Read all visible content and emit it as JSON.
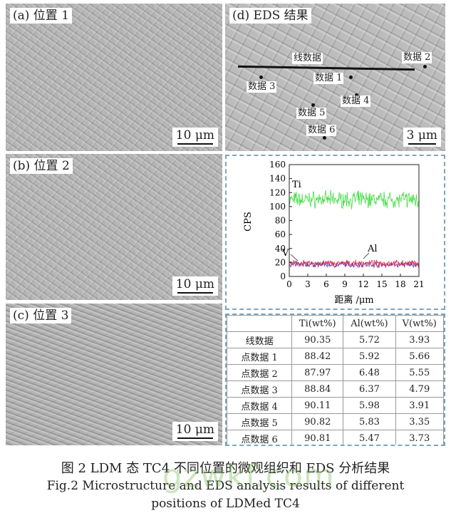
{
  "panel_a": {
    "label": "(a) 位置 1",
    "scale": "10 μm"
  },
  "panel_b": {
    "label": "(b) 位置 2",
    "scale": "10 μm"
  },
  "panel_c": {
    "label": "(c) 位置 3",
    "scale": "10 μm"
  },
  "panel_d": {
    "label": "(d) EDS 结果",
    "scale": "3 μm",
    "line_label": "线数据",
    "points": [
      "数据 1",
      "数据 2",
      "数据 3",
      "数据 4",
      "数据 5",
      "数据 6"
    ]
  },
  "chart_data": {
    "type": "line",
    "xlabel": "距离 /μm",
    "ylabel": "CPS",
    "xlim": [
      0,
      21
    ],
    "ylim": [
      0,
      160
    ],
    "xticks": [
      "0",
      "3",
      "6",
      "9",
      "12",
      "15",
      "18",
      "21"
    ],
    "yticks": [
      "0",
      "20",
      "40",
      "60",
      "80",
      "100",
      "120",
      "140",
      "160"
    ],
    "series": [
      {
        "name": "Ti",
        "color": "#44dd44",
        "mean": 110,
        "noise": 14
      },
      {
        "name": "Al",
        "color": "#dd3355",
        "mean": 19,
        "noise": 5
      },
      {
        "name": "V",
        "color": "#6a2a9a",
        "mean": 17,
        "noise": 5
      }
    ],
    "grid": false,
    "legend": "inline-labels"
  },
  "table": {
    "headers": [
      "",
      "Ti(wt%)",
      "Al(wt%)",
      "V(wt%)"
    ],
    "rows": [
      [
        "线数据",
        "90.35",
        "5.72",
        "3.93"
      ],
      [
        "点数据 1",
        "88.42",
        "5.92",
        "5.66"
      ],
      [
        "点数据 2",
        "87.97",
        "6.48",
        "5.55"
      ],
      [
        "点数据 3",
        "88.84",
        "6.37",
        "4.79"
      ],
      [
        "点数据 4",
        "90.11",
        "5.98",
        "3.91"
      ],
      [
        "点数据 5",
        "90.82",
        "5.83",
        "3.35"
      ],
      [
        "点数据 6",
        "90.81",
        "5.47",
        "3.73"
      ]
    ]
  },
  "caption": {
    "cn": "图 2   LDM 态 TC4 不同位置的微观组织和 EDS 分析结果",
    "en1": "Fig.2   Microstructure and EDS analysis results of different",
    "en2": "positions of LDMed TC4"
  },
  "watermark": "gzwkf.com"
}
